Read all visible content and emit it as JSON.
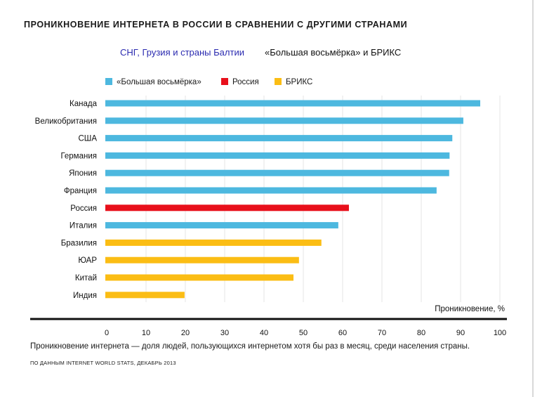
{
  "title": "ПРОНИКНОВЕНИЕ ИНТЕРНЕТА В РОССИИ В СРАВНЕНИИ С ДРУГИМИ СТРАНАМИ",
  "tabs": {
    "cis": "СНГ, Грузия и страны Балтии",
    "g8_brics": "«Большая восьмёрка» и БРИКС"
  },
  "colors": {
    "g8": "#4db8df",
    "russia": "#e8101b",
    "brics": "#fbbd14",
    "tab_active": "#2b2bb0"
  },
  "chart_data": {
    "type": "bar",
    "orientation": "horizontal",
    "xlabel": "Проникновение, %",
    "xlim": [
      0,
      100
    ],
    "xticks": [
      "0",
      "10",
      "20",
      "30",
      "40",
      "50",
      "60",
      "70",
      "80",
      "90",
      "100"
    ],
    "grid": "vertical",
    "legend_position": "top-left",
    "legend": [
      {
        "name": "«Большая восьмёрка»",
        "color": "#4db8df"
      },
      {
        "name": "Россия",
        "color": "#e8101b"
      },
      {
        "name": "БРИКС",
        "color": "#fbbd14"
      }
    ],
    "categories": [
      "Канада",
      "Великобритания",
      "США",
      "Германия",
      "Япония",
      "Франция",
      "Россия",
      "Италия",
      "Бразилия",
      "ЮАР",
      "Китай",
      "Индия"
    ],
    "values": [
      95,
      90.7,
      87.9,
      87.2,
      87.1,
      83.9,
      61.6,
      58.9,
      54.6,
      48.9,
      47.5,
      19.8
    ],
    "groups": [
      "g8",
      "g8",
      "g8",
      "g8",
      "g8",
      "g8",
      "russia",
      "g8",
      "brics",
      "brics",
      "brics",
      "brics"
    ]
  },
  "note": "Проникновение интернета — доля людей, пользующихся интернетом хотя бы раз в месяц, среди населения страны.",
  "source": "ПО ДАННЫМ INTERNET WORLD STATS, ДЕКАБРЬ 2013"
}
